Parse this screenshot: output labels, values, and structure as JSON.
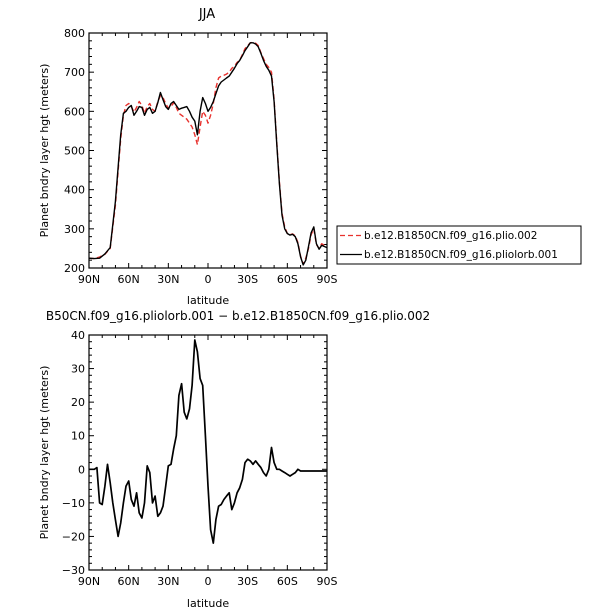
{
  "chart_data": [
    {
      "type": "line",
      "title": "JJA",
      "xlabel": "latitude",
      "ylabel": "Planet bndry layer hgt (meters)",
      "xlim": [
        90,
        -90
      ],
      "ylim": [
        200,
        800
      ],
      "x_ticks": [
        90,
        60,
        30,
        0,
        -30,
        -60,
        -90
      ],
      "x_tick_labels": [
        "90N",
        "60N",
        "30N",
        "0",
        "30S",
        "60S",
        "90S"
      ],
      "y_ticks": [
        200,
        300,
        400,
        500,
        600,
        700,
        800
      ],
      "y_tick_labels": [
        "200",
        "300",
        "400",
        "500",
        "600",
        "700",
        "800"
      ],
      "legend_position": "right",
      "series": [
        {
          "name": "b.e12.B1850CN.f09_g16.plio.002",
          "color": "#e8322e",
          "dash": "dashed",
          "x": [
            90,
            86,
            82,
            78,
            74,
            70,
            66,
            64,
            62,
            60,
            58,
            56,
            54,
            52,
            50,
            48,
            46,
            44,
            42,
            40,
            38,
            36,
            34,
            32,
            30,
            28,
            26,
            24,
            22,
            20,
            18,
            16,
            14,
            12,
            10,
            8,
            6,
            4,
            2,
            0,
            -2,
            -4,
            -6,
            -8,
            -10,
            -12,
            -14,
            -16,
            -18,
            -20,
            -22,
            -24,
            -26,
            -28,
            -30,
            -32,
            -34,
            -36,
            -38,
            -40,
            -42,
            -44,
            -46,
            -48,
            -50,
            -52,
            -54,
            -56,
            -58,
            -60,
            -62,
            -64,
            -66,
            -68,
            -70,
            -72,
            -74,
            -76,
            -78,
            -80,
            -82,
            -84,
            -86,
            -88,
            -90
          ],
          "values": [
            225,
            224,
            228,
            235,
            250,
            360,
            530,
            590,
            615,
            620,
            612,
            598,
            610,
            625,
            615,
            595,
            612,
            620,
            605,
            600,
            625,
            640,
            635,
            620,
            608,
            612,
            622,
            610,
            595,
            590,
            585,
            580,
            570,
            560,
            540,
            515,
            560,
            600,
            590,
            570,
            590,
            620,
            660,
            685,
            690,
            692,
            695,
            700,
            710,
            715,
            725,
            730,
            745,
            760,
            768,
            775,
            776,
            774,
            768,
            750,
            735,
            720,
            712,
            700,
            630,
            520,
            420,
            340,
            305,
            288,
            285,
            287,
            282,
            265,
            230,
            210,
            225,
            250,
            285,
            300,
            260,
            250,
            262,
            258,
            255
          ]
        },
        {
          "name": "b.e12.B1850CN.f09_g16.pliolorb.001",
          "color": "#000000",
          "dash": "solid",
          "x": [
            90,
            86,
            82,
            78,
            74,
            70,
            66,
            64,
            62,
            60,
            58,
            56,
            54,
            52,
            50,
            48,
            46,
            44,
            42,
            40,
            38,
            36,
            34,
            32,
            30,
            28,
            26,
            24,
            22,
            20,
            18,
            16,
            14,
            12,
            10,
            8,
            6,
            4,
            2,
            0,
            -2,
            -4,
            -6,
            -8,
            -10,
            -12,
            -14,
            -16,
            -18,
            -20,
            -22,
            -24,
            -26,
            -28,
            -30,
            -32,
            -34,
            -36,
            -38,
            -40,
            -42,
            -44,
            -46,
            -48,
            -50,
            -52,
            -54,
            -56,
            -58,
            -60,
            -62,
            -64,
            -66,
            -68,
            -70,
            -72,
            -74,
            -76,
            -78,
            -80,
            -82,
            -84,
            -86,
            -88,
            -90
          ],
          "values": [
            225,
            224,
            225,
            236,
            252,
            370,
            540,
            595,
            600,
            610,
            615,
            590,
            600,
            612,
            610,
            590,
            605,
            610,
            595,
            600,
            622,
            648,
            630,
            612,
            605,
            620,
            625,
            615,
            605,
            608,
            610,
            612,
            600,
            585,
            575,
            540,
            600,
            635,
            620,
            600,
            610,
            625,
            645,
            665,
            675,
            680,
            685,
            690,
            700,
            710,
            722,
            730,
            742,
            755,
            765,
            775,
            775,
            772,
            765,
            748,
            730,
            715,
            705,
            690,
            625,
            515,
            415,
            335,
            300,
            288,
            284,
            286,
            280,
            262,
            228,
            208,
            220,
            255,
            290,
            305,
            262,
            248,
            258,
            255,
            252
          ]
        }
      ]
    },
    {
      "type": "line",
      "title": "B50CN.f09_g16.pliolorb.001 − b.e12.B1850CN.f09_g16.plio.002",
      "xlabel": "latitude",
      "ylabel": "Planet bndry layer hgt (meters)",
      "xlim": [
        90,
        -90
      ],
      "ylim": [
        -30,
        40
      ],
      "x_ticks": [
        90,
        60,
        30,
        0,
        -30,
        -60,
        -90
      ],
      "x_tick_labels": [
        "90N",
        "60N",
        "30N",
        "0",
        "30S",
        "60S",
        "90S"
      ],
      "y_ticks": [
        -30,
        -20,
        -10,
        0,
        10,
        20,
        30,
        40
      ],
      "y_tick_labels": [
        "−30",
        "−20",
        "−10",
        "0",
        "10",
        "20",
        "30",
        "40"
      ],
      "series": [
        {
          "color": "#000000",
          "dash": "solid",
          "x": [
            90,
            88,
            86,
            84,
            82,
            80,
            78,
            76,
            74,
            72,
            70,
            68,
            66,
            64,
            62,
            60,
            58,
            56,
            54,
            52,
            50,
            48,
            46,
            44,
            42,
            40,
            38,
            36,
            34,
            32,
            30,
            28,
            26,
            24,
            22,
            20,
            18,
            16,
            14,
            12,
            10,
            8,
            6,
            4,
            2,
            0,
            -2,
            -4,
            -6,
            -8,
            -10,
            -12,
            -14,
            -16,
            -18,
            -20,
            -22,
            -24,
            -26,
            -28,
            -30,
            -32,
            -34,
            -36,
            -38,
            -40,
            -42,
            -44,
            -46,
            -48,
            -50,
            -52,
            -54,
            -56,
            -58,
            -60,
            -62,
            -64,
            -66,
            -68,
            -70,
            -72,
            -74,
            -76,
            -78,
            -80,
            -82,
            -84,
            -86,
            -88,
            -90
          ],
          "values": [
            0,
            0,
            0,
            0.5,
            -10,
            -10.5,
            -5,
            1.5,
            -4,
            -10,
            -15,
            -20,
            -16,
            -10,
            -5,
            -3.5,
            -9,
            -11,
            -7,
            -13,
            -14.5,
            -10,
            1,
            -1,
            -10,
            -8,
            -14,
            -13,
            -11,
            -5,
            1,
            1.5,
            6,
            10,
            22,
            25.5,
            17,
            15,
            18,
            25,
            38.5,
            35,
            27,
            25,
            10,
            -5,
            -18,
            -22,
            -15,
            -11,
            -10.5,
            -9,
            -8,
            -7,
            -12,
            -10,
            -7,
            -5.5,
            -3,
            2,
            3,
            2.5,
            1.5,
            2.5,
            1.5,
            0.5,
            -1,
            -2,
            0,
            6.5,
            2,
            0,
            0,
            -0.5,
            -1,
            -1.5,
            -2,
            -1.5,
            -1,
            0,
            -0.5,
            -0.5,
            -0.5,
            -0.5,
            -0.5,
            -0.5,
            -0.5,
            -0.5,
            -0.5,
            -0.5,
            -0.5
          ]
        }
      ]
    }
  ]
}
